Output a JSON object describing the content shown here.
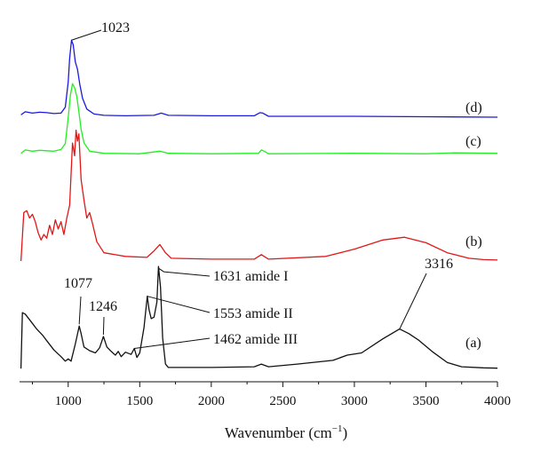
{
  "chart_data": {
    "type": "line",
    "xlabel": "Wavenumber (cm",
    "xlabel_sup": "−1",
    "xlabel_close": ")",
    "xlim": [
      660,
      4000
    ],
    "xticks": [
      "1000",
      "1500",
      "2000",
      "2500",
      "3000",
      "3500",
      "4000"
    ],
    "grid": false,
    "y_axis_visible": false,
    "series": [
      {
        "name": "(d)",
        "color": "#1a1adf",
        "points": [
          [
            670,
            0.35
          ],
          [
            700,
            0.7
          ],
          [
            750,
            0.55
          ],
          [
            800,
            0.65
          ],
          [
            850,
            0.6
          ],
          [
            900,
            0.5
          ],
          [
            950,
            0.55
          ],
          [
            980,
            1.2
          ],
          [
            1000,
            4.0
          ],
          [
            1010,
            6.6
          ],
          [
            1023,
            8.6
          ],
          [
            1035,
            8.1
          ],
          [
            1050,
            6.2
          ],
          [
            1065,
            5.4
          ],
          [
            1080,
            3.8
          ],
          [
            1100,
            2.2
          ],
          [
            1130,
            1.0
          ],
          [
            1180,
            0.45
          ],
          [
            1250,
            0.3
          ],
          [
            1400,
            0.25
          ],
          [
            1600,
            0.3
          ],
          [
            1650,
            0.55
          ],
          [
            1700,
            0.3
          ],
          [
            2000,
            0.25
          ],
          [
            2300,
            0.25
          ],
          [
            2340,
            0.6
          ],
          [
            2360,
            0.55
          ],
          [
            2400,
            0.2
          ],
          [
            3000,
            0.2
          ],
          [
            3500,
            0.15
          ],
          [
            4000,
            0.1
          ]
        ]
      },
      {
        "name": "(c)",
        "color": "#22ee22",
        "points": [
          [
            670,
            0.35
          ],
          [
            700,
            0.75
          ],
          [
            750,
            0.6
          ],
          [
            800,
            0.7
          ],
          [
            850,
            0.65
          ],
          [
            900,
            0.6
          ],
          [
            950,
            0.8
          ],
          [
            980,
            1.5
          ],
          [
            1000,
            4.6
          ],
          [
            1015,
            7.2
          ],
          [
            1030,
            8.6
          ],
          [
            1045,
            8.1
          ],
          [
            1060,
            7.1
          ],
          [
            1070,
            5.9
          ],
          [
            1090,
            3.2
          ],
          [
            1110,
            1.6
          ],
          [
            1150,
            0.6
          ],
          [
            1250,
            0.35
          ],
          [
            1500,
            0.3
          ],
          [
            1640,
            0.6
          ],
          [
            1700,
            0.35
          ],
          [
            2000,
            0.3
          ],
          [
            2330,
            0.35
          ],
          [
            2350,
            0.75
          ],
          [
            2370,
            0.6
          ],
          [
            2400,
            0.3
          ],
          [
            3000,
            0.35
          ],
          [
            3500,
            0.3
          ],
          [
            3700,
            0.4
          ],
          [
            4000,
            0.35
          ]
        ]
      },
      {
        "name": "(b)",
        "color": "#e01818",
        "points": [
          [
            670,
            0.1
          ],
          [
            690,
            5.4
          ],
          [
            710,
            5.6
          ],
          [
            730,
            4.8
          ],
          [
            750,
            5.2
          ],
          [
            770,
            4.4
          ],
          [
            790,
            3.2
          ],
          [
            810,
            2.4
          ],
          [
            830,
            3.0
          ],
          [
            850,
            2.6
          ],
          [
            870,
            4.0
          ],
          [
            890,
            3.0
          ],
          [
            910,
            4.6
          ],
          [
            930,
            3.6
          ],
          [
            950,
            4.4
          ],
          [
            970,
            3.0
          ],
          [
            990,
            4.8
          ],
          [
            1010,
            6.2
          ],
          [
            1030,
            13.0
          ],
          [
            1045,
            11.6
          ],
          [
            1055,
            14.4
          ],
          [
            1065,
            13.2
          ],
          [
            1075,
            14.0
          ],
          [
            1090,
            9.0
          ],
          [
            1110,
            6.8
          ],
          [
            1130,
            4.8
          ],
          [
            1150,
            5.4
          ],
          [
            1170,
            4.2
          ],
          [
            1200,
            2.2
          ],
          [
            1250,
            1.0
          ],
          [
            1400,
            0.6
          ],
          [
            1550,
            0.5
          ],
          [
            1600,
            1.2
          ],
          [
            1640,
            1.9
          ],
          [
            1680,
            1.0
          ],
          [
            1720,
            0.4
          ],
          [
            2000,
            0.3
          ],
          [
            2300,
            0.3
          ],
          [
            2350,
            0.8
          ],
          [
            2400,
            0.3
          ],
          [
            2800,
            0.6
          ],
          [
            3000,
            1.4
          ],
          [
            3200,
            2.4
          ],
          [
            3350,
            2.7
          ],
          [
            3500,
            2.1
          ],
          [
            3650,
            1.0
          ],
          [
            3800,
            0.4
          ],
          [
            3900,
            0.25
          ],
          [
            4000,
            0.2
          ]
        ]
      },
      {
        "name": "(a)",
        "color": "#111111",
        "points": [
          [
            670,
            0.1
          ],
          [
            680,
            7.6
          ],
          [
            700,
            7.4
          ],
          [
            740,
            6.4
          ],
          [
            780,
            5.4
          ],
          [
            820,
            4.6
          ],
          [
            860,
            3.6
          ],
          [
            900,
            2.6
          ],
          [
            950,
            1.7
          ],
          [
            980,
            1.1
          ],
          [
            1000,
            1.4
          ],
          [
            1020,
            1.1
          ],
          [
            1050,
            3.4
          ],
          [
            1077,
            5.8
          ],
          [
            1090,
            4.8
          ],
          [
            1110,
            3.0
          ],
          [
            1150,
            2.5
          ],
          [
            1190,
            2.2
          ],
          [
            1220,
            2.9
          ],
          [
            1246,
            4.4
          ],
          [
            1270,
            3.0
          ],
          [
            1300,
            2.4
          ],
          [
            1330,
            1.9
          ],
          [
            1350,
            2.4
          ],
          [
            1370,
            1.7
          ],
          [
            1400,
            2.3
          ],
          [
            1440,
            2.0
          ],
          [
            1462,
            2.8
          ],
          [
            1480,
            1.6
          ],
          [
            1500,
            2.2
          ],
          [
            1530,
            5.6
          ],
          [
            1553,
            9.8
          ],
          [
            1565,
            8.0
          ],
          [
            1580,
            6.8
          ],
          [
            1600,
            7.0
          ],
          [
            1620,
            9.0
          ],
          [
            1631,
            13.8
          ],
          [
            1645,
            11.0
          ],
          [
            1660,
            4.2
          ],
          [
            1680,
            0.7
          ],
          [
            1700,
            0.25
          ],
          [
            2000,
            0.25
          ],
          [
            2300,
            0.35
          ],
          [
            2350,
            0.7
          ],
          [
            2400,
            0.35
          ],
          [
            2600,
            0.7
          ],
          [
            2850,
            1.2
          ],
          [
            2950,
            1.9
          ],
          [
            3050,
            2.2
          ],
          [
            3200,
            4.1
          ],
          [
            3316,
            5.4
          ],
          [
            3380,
            4.8
          ],
          [
            3450,
            3.9
          ],
          [
            3550,
            2.3
          ],
          [
            3650,
            0.9
          ],
          [
            3750,
            0.35
          ],
          [
            3900,
            0.2
          ],
          [
            4000,
            0.15
          ]
        ]
      }
    ],
    "annotations": [
      {
        "text": "1023",
        "series": "(d)",
        "x": 1023
      },
      {
        "text": "1077",
        "series": "(a)",
        "x": 1077
      },
      {
        "text": "1246",
        "series": "(a)",
        "x": 1246
      },
      {
        "text": "1631 amide I",
        "series": "(a)",
        "x": 1631
      },
      {
        "text": "1553 amide II",
        "series": "(a)",
        "x": 1553
      },
      {
        "text": "1462 amide III",
        "series": "(a)",
        "x": 1462
      },
      {
        "text": "3316",
        "series": "(a)",
        "x": 3316
      }
    ]
  }
}
